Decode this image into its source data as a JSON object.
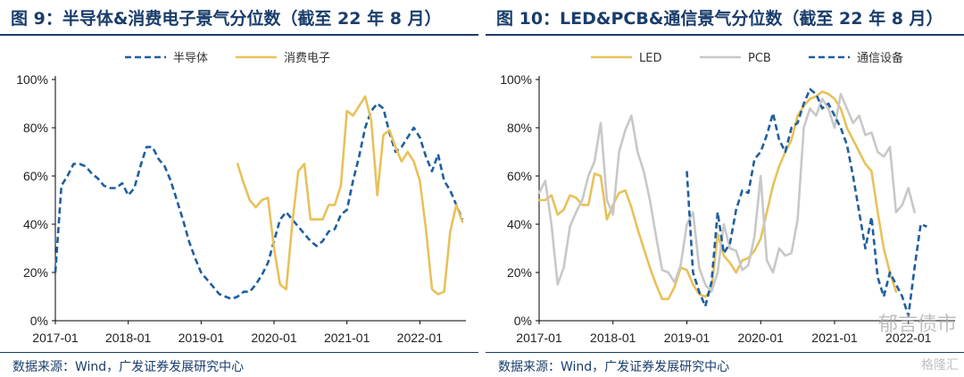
{
  "panels": [
    {
      "title": "图 9：半导体&消费电子景气分位数（截至 22 年 8 月）",
      "source": "数据来源：Wind，广发证券发展研究中心"
    },
    {
      "title": "图 10：LED&PCB&通信景气分位数（截至 22 年 8 月）",
      "source": "数据来源：Wind，广发证券发展研究中心"
    }
  ],
  "watermark": {
    "text": "郁言债市",
    "subtext": "格隆汇"
  },
  "chart_data": [
    {
      "type": "line",
      "title": "",
      "xlabel": "",
      "ylabel": "",
      "x_ticks": [
        "2017-01",
        "2018-01",
        "2019-01",
        "2020-01",
        "2021-01",
        "2022-01"
      ],
      "y_ticks": [
        "0%",
        "20%",
        "40%",
        "60%",
        "80%",
        "100%"
      ],
      "ylim": [
        0,
        100
      ],
      "xlim": [
        "2017-01",
        "2022-08"
      ],
      "grid": false,
      "legend_position": "top-center",
      "x": [
        "2017-01",
        "2017-02",
        "2017-03",
        "2017-04",
        "2017-05",
        "2017-06",
        "2017-07",
        "2017-08",
        "2017-09",
        "2017-10",
        "2017-11",
        "2017-12",
        "2018-01",
        "2018-02",
        "2018-03",
        "2018-04",
        "2018-05",
        "2018-06",
        "2018-07",
        "2018-08",
        "2018-09",
        "2018-10",
        "2018-11",
        "2018-12",
        "2019-01",
        "2019-02",
        "2019-03",
        "2019-04",
        "2019-05",
        "2019-06",
        "2019-07",
        "2019-08",
        "2019-09",
        "2019-10",
        "2019-11",
        "2019-12",
        "2020-01",
        "2020-02",
        "2020-03",
        "2020-04",
        "2020-05",
        "2020-06",
        "2020-07",
        "2020-08",
        "2020-09",
        "2020-10",
        "2020-11",
        "2020-12",
        "2021-01",
        "2021-02",
        "2021-03",
        "2021-04",
        "2021-05",
        "2021-06",
        "2021-07",
        "2021-08",
        "2021-09",
        "2021-10",
        "2021-11",
        "2021-12",
        "2022-01",
        "2022-02",
        "2022-03",
        "2022-04",
        "2022-05",
        "2022-06",
        "2022-07",
        "2022-08"
      ],
      "series": [
        {
          "name": "半导体",
          "color": "#1f5f9f",
          "dash": "dashed",
          "values": [
            20,
            56,
            60,
            65,
            65,
            64,
            61,
            59,
            56,
            55,
            55,
            57,
            52,
            55,
            64,
            72,
            72,
            67,
            64,
            58,
            50,
            42,
            33,
            26,
            20,
            17,
            14,
            11,
            10,
            9,
            10,
            12,
            12,
            15,
            19,
            24,
            33,
            42,
            45,
            42,
            39,
            36,
            33,
            31,
            33,
            37,
            38,
            44,
            46,
            58,
            68,
            80,
            87,
            90,
            88,
            78,
            70,
            72,
            76,
            80,
            76,
            68,
            62,
            69,
            58,
            54,
            48,
            42
          ]
        },
        {
          "name": "消费电子",
          "color": "#e8c15a",
          "dash": "solid",
          "values": [
            null,
            null,
            null,
            null,
            null,
            null,
            null,
            null,
            null,
            null,
            null,
            null,
            null,
            null,
            null,
            null,
            null,
            null,
            null,
            null,
            null,
            null,
            null,
            null,
            null,
            null,
            null,
            null,
            null,
            null,
            65,
            57,
            50,
            47,
            50,
            51,
            30,
            15,
            13,
            40,
            62,
            65,
            42,
            42,
            42,
            48,
            48,
            56,
            87,
            85,
            89,
            93,
            83,
            52,
            77,
            79,
            72,
            66,
            70,
            66,
            58,
            38,
            13,
            11,
            12,
            37,
            48,
            41
          ]
        }
      ]
    },
    {
      "type": "line",
      "title": "",
      "xlabel": "",
      "ylabel": "",
      "x_ticks": [
        "2017-01",
        "2018-01",
        "2019-01",
        "2020-01",
        "2021-01",
        "2022-01"
      ],
      "y_ticks": [
        "0%",
        "20%",
        "40%",
        "60%",
        "80%",
        "100%"
      ],
      "ylim": [
        0,
        100
      ],
      "xlim": [
        "2017-01",
        "2022-08"
      ],
      "grid": false,
      "legend_position": "top-center",
      "x": [
        "2017-01",
        "2017-02",
        "2017-03",
        "2017-04",
        "2017-05",
        "2017-06",
        "2017-07",
        "2017-08",
        "2017-09",
        "2017-10",
        "2017-11",
        "2017-12",
        "2018-01",
        "2018-02",
        "2018-03",
        "2018-04",
        "2018-05",
        "2018-06",
        "2018-07",
        "2018-08",
        "2018-09",
        "2018-10",
        "2018-11",
        "2018-12",
        "2019-01",
        "2019-02",
        "2019-03",
        "2019-04",
        "2019-05",
        "2019-06",
        "2019-07",
        "2019-08",
        "2019-09",
        "2019-10",
        "2019-11",
        "2019-12",
        "2020-01",
        "2020-02",
        "2020-03",
        "2020-04",
        "2020-05",
        "2020-06",
        "2020-07",
        "2020-08",
        "2020-09",
        "2020-10",
        "2020-11",
        "2020-12",
        "2021-01",
        "2021-02",
        "2021-03",
        "2021-04",
        "2021-05",
        "2021-06",
        "2021-07",
        "2021-08",
        "2021-09",
        "2021-10",
        "2021-11",
        "2021-12",
        "2022-01",
        "2022-02",
        "2022-03",
        "2022-04",
        "2022-05",
        "2022-06",
        "2022-07",
        "2022-08"
      ],
      "series": [
        {
          "name": "LED",
          "color": "#e8c15a",
          "dash": "solid",
          "values": [
            50,
            50,
            52,
            44,
            46,
            52,
            51,
            48,
            48,
            61,
            60,
            42,
            48,
            53,
            54,
            47,
            38,
            30,
            22,
            15,
            9,
            9,
            14,
            22,
            21,
            15,
            11,
            10,
            13,
            36,
            27,
            24,
            20,
            25,
            26,
            29,
            34,
            45,
            56,
            64,
            70,
            75,
            85,
            89,
            92,
            93,
            95,
            94,
            92,
            88,
            80,
            75,
            70,
            65,
            62,
            45,
            30,
            20,
            12,
            null,
            null,
            null,
            null,
            null,
            null,
            null,
            null,
            null
          ]
        },
        {
          "name": "PCB",
          "color": "#c8c8c8",
          "dash": "solid",
          "values": [
            53,
            58,
            40,
            15,
            22,
            39,
            45,
            50,
            60,
            66,
            82,
            50,
            44,
            70,
            79,
            85,
            70,
            62,
            50,
            35,
            21,
            20,
            16,
            23,
            40,
            45,
            22,
            15,
            12,
            20,
            40,
            30,
            29,
            21,
            23,
            35,
            60,
            25,
            20,
            30,
            27,
            28,
            42,
            80,
            88,
            85,
            92,
            88,
            80,
            94,
            88,
            82,
            85,
            77,
            78,
            70,
            68,
            72,
            45,
            48,
            55,
            45,
            null,
            null,
            null,
            null,
            null,
            null
          ]
        },
        {
          "name": "通信设备",
          "color": "#1f5f9f",
          "dash": "dashed",
          "values": [
            null,
            null,
            null,
            null,
            null,
            null,
            null,
            null,
            null,
            null,
            null,
            null,
            null,
            null,
            null,
            null,
            null,
            null,
            null,
            null,
            null,
            null,
            null,
            null,
            62,
            20,
            12,
            6,
            16,
            45,
            28,
            32,
            46,
            54,
            53,
            67,
            70,
            77,
            86,
            75,
            70,
            80,
            82,
            90,
            96,
            94,
            88,
            90,
            85,
            80,
            73,
            60,
            45,
            30,
            43,
            18,
            10,
            20,
            15,
            10,
            2,
            22,
            40,
            39,
            null,
            null,
            null,
            null
          ]
        }
      ]
    }
  ]
}
